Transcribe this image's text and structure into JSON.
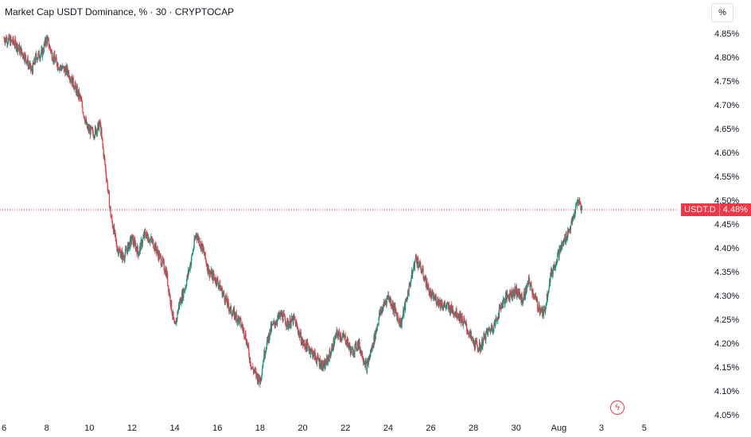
{
  "header": {
    "title": "Market Cap USDT Dominance, % · 30 · CRYPTOCAP"
  },
  "scale_button": {
    "label": "%"
  },
  "last_price": {
    "symbol": "USDT.D",
    "value": "4.48%"
  },
  "colors": {
    "up": "#089981",
    "down": "#f23645",
    "price_line": "#f23645",
    "text": "#131722"
  },
  "icons": {
    "event": "lightning-icon"
  },
  "chart_data": {
    "type": "line",
    "title": "Market Cap USDT Dominance, % · 30 · CRYPTOCAP",
    "ylabel": "",
    "xlabel": "",
    "ylim": [
      4.04,
      4.87
    ],
    "y_ticks": [
      "4.85%",
      "4.80%",
      "4.75%",
      "4.70%",
      "4.65%",
      "4.60%",
      "4.55%",
      "4.50%",
      "4.45%",
      "4.40%",
      "4.35%",
      "4.30%",
      "4.25%",
      "4.20%",
      "4.15%",
      "4.10%",
      "4.05%"
    ],
    "x_ticks": [
      "6",
      "8",
      "10",
      "12",
      "14",
      "16",
      "18",
      "20",
      "22",
      "24",
      "26",
      "28",
      "30",
      "Aug",
      "3",
      "5"
    ],
    "x_range": [
      6,
      37.5
    ],
    "last_value": 4.48,
    "series": [
      {
        "values_note": "",
        "x": [
          6.0,
          6.5,
          7.0,
          7.3,
          7.5,
          7.8,
          8.0,
          8.3,
          8.6,
          9.0,
          9.3,
          9.6,
          9.9,
          10.2,
          10.5,
          10.8,
          11.0,
          11.3,
          11.6,
          12.0,
          12.3,
          12.6,
          13.0,
          13.3,
          13.6,
          14.0,
          14.2,
          14.5,
          14.8,
          15.0,
          15.3,
          15.6,
          16.0,
          16.3,
          16.6,
          17.0,
          17.3,
          17.6,
          18.0,
          18.2,
          18.5,
          18.8,
          19.0,
          19.3,
          19.6,
          20.0,
          20.3,
          20.6,
          21.0,
          21.3,
          21.6,
          22.0,
          22.3,
          22.6,
          23.0,
          23.3,
          23.6,
          24.0,
          24.3,
          24.6,
          25.0,
          25.3,
          25.6,
          26.0,
          26.3,
          26.6,
          27.0,
          27.3,
          27.6,
          28.0,
          28.3,
          28.6,
          29.0,
          29.3,
          29.6,
          30.0,
          30.3,
          30.6,
          31.0,
          31.3,
          31.6,
          32.0,
          32.3,
          32.6,
          32.9,
          33.1
        ],
        "values": [
          4.84,
          4.83,
          4.8,
          4.77,
          4.8,
          4.81,
          4.84,
          4.8,
          4.78,
          4.77,
          4.74,
          4.71,
          4.65,
          4.64,
          4.66,
          4.55,
          4.47,
          4.4,
          4.38,
          4.42,
          4.39,
          4.43,
          4.41,
          4.38,
          4.35,
          4.23,
          4.28,
          4.32,
          4.38,
          4.43,
          4.4,
          4.35,
          4.33,
          4.3,
          4.27,
          4.25,
          4.22,
          4.15,
          4.12,
          4.18,
          4.23,
          4.25,
          4.26,
          4.24,
          4.25,
          4.2,
          4.19,
          4.17,
          4.15,
          4.18,
          4.22,
          4.21,
          4.18,
          4.2,
          4.15,
          4.2,
          4.26,
          4.3,
          4.27,
          4.24,
          4.32,
          4.38,
          4.35,
          4.3,
          4.29,
          4.28,
          4.27,
          4.26,
          4.24,
          4.2,
          4.19,
          4.22,
          4.24,
          4.28,
          4.3,
          4.31,
          4.29,
          4.33,
          4.28,
          4.26,
          4.34,
          4.39,
          4.42,
          4.45,
          4.5,
          4.48
        ]
      }
    ]
  }
}
